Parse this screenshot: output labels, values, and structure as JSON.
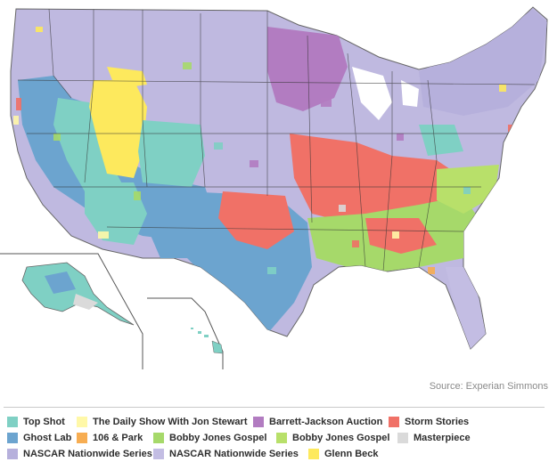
{
  "source": "Source: Experian Simmons",
  "legend": [
    {
      "label": "Top Shot",
      "color": "#7fd0c4"
    },
    {
      "label": "The Daily Show With Jon Stewart",
      "color": "#fff8a8"
    },
    {
      "label": "Barrett-Jackson Auction",
      "color": "#b27cc1"
    },
    {
      "label": "Storm Stories",
      "color": "#f07167"
    },
    {
      "label": "Ghost Lab",
      "color": "#6ca4cf"
    },
    {
      "label": "106 & Park",
      "color": "#f7ad52"
    },
    {
      "label": "Bobby Jones Gospel",
      "color": "#a6d96a"
    },
    {
      "label": "Bobby Jones Gospel",
      "color": "#b8e06a"
    },
    {
      "label": "Masterpiece",
      "color": "#dadada"
    },
    {
      "label": "NASCAR Nationwide Series",
      "color": "#b6b0dc"
    },
    {
      "label": "NASCAR Nationwide Series",
      "color": "#c3bde3"
    },
    {
      "label": "Glenn Beck",
      "color": "#fde95d"
    }
  ]
}
